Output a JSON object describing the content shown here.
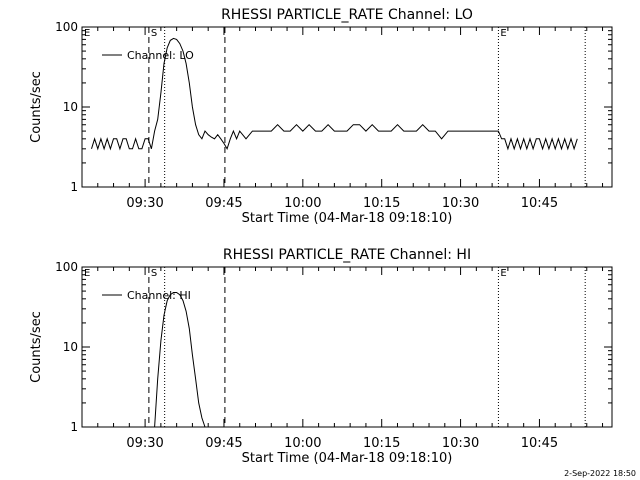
{
  "footer": {
    "timestamp": "2-Sep-2022 18:50"
  },
  "chart_data": [
    {
      "type": "line",
      "title": "RHESSI PARTICLE_RATE Channel: LO",
      "xlabel": "Start Time (04-Mar-18 09:18:10)",
      "ylabel": "Counts/sec",
      "xlim": [
        9.3,
        10.98
      ],
      "ylim": [
        1,
        100
      ],
      "yscale": "log",
      "x_ticks": [
        9.5,
        9.75,
        10.0,
        10.25,
        10.5,
        10.75
      ],
      "x_tick_labels": [
        "09:30",
        "09:45",
        "10:00",
        "10:15",
        "10:30",
        "10:45"
      ],
      "y_ticks": [
        1,
        10,
        100
      ],
      "y_tick_labels": [
        "1",
        "10",
        "100"
      ],
      "legend": {
        "position": "top-left",
        "entries": [
          "Channel: LO"
        ]
      },
      "markers": [
        {
          "x": 9.3,
          "style": "none",
          "label": "E"
        },
        {
          "x": 9.512,
          "style": "dashed",
          "label": "S"
        },
        {
          "x": 9.562,
          "style": "dotted",
          "label": ""
        },
        {
          "x": 9.753,
          "style": "dashed",
          "label": ""
        },
        {
          "x": 10.62,
          "style": "dotted",
          "label": "E"
        },
        {
          "x": 10.895,
          "style": "dotted",
          "label": ""
        }
      ],
      "series": [
        {
          "name": "Channel: LO",
          "x": [
            9.33,
            9.34,
            9.35,
            9.36,
            9.37,
            9.38,
            9.39,
            9.4,
            9.41,
            9.42,
            9.43,
            9.44,
            9.45,
            9.46,
            9.47,
            9.48,
            9.49,
            9.5,
            9.51,
            9.52,
            9.53,
            9.54,
            9.55,
            9.56,
            9.57,
            9.58,
            9.59,
            9.6,
            9.61,
            9.62,
            9.63,
            9.64,
            9.65,
            9.66,
            9.67,
            9.68,
            9.69,
            9.7,
            9.71,
            9.72,
            9.73,
            9.74,
            9.75,
            9.76,
            9.77,
            9.78,
            9.79,
            9.8,
            9.82,
            9.84,
            9.86,
            9.88,
            9.9,
            9.92,
            9.94,
            9.96,
            9.98,
            10.0,
            10.02,
            10.04,
            10.06,
            10.08,
            10.1,
            10.12,
            10.14,
            10.16,
            10.18,
            10.2,
            10.22,
            10.24,
            10.26,
            10.28,
            10.3,
            10.32,
            10.34,
            10.36,
            10.38,
            10.4,
            10.42,
            10.44,
            10.46,
            10.48,
            10.5,
            10.52,
            10.54,
            10.56,
            10.58,
            10.6,
            10.62,
            10.63,
            10.64,
            10.65,
            10.66,
            10.67,
            10.68,
            10.69,
            10.7,
            10.71,
            10.72,
            10.73,
            10.74,
            10.75,
            10.76,
            10.77,
            10.78,
            10.79,
            10.8,
            10.81,
            10.82,
            10.83,
            10.84,
            10.85,
            10.86,
            10.87
          ],
          "values": [
            3,
            4,
            3,
            4,
            3,
            4,
            3,
            4,
            4,
            3,
            4,
            4,
            3,
            3,
            4,
            3,
            3,
            4,
            4,
            3,
            5,
            7,
            15,
            35,
            55,
            68,
            72,
            70,
            62,
            50,
            35,
            20,
            10,
            6,
            4.5,
            4,
            5,
            4.5,
            4.2,
            4,
            4.5,
            4,
            3.5,
            3,
            4,
            5,
            4,
            5,
            4,
            5,
            5,
            5,
            5,
            6,
            5,
            5,
            6,
            5,
            6,
            5,
            5,
            6,
            5,
            5,
            5,
            6,
            6,
            5,
            6,
            5,
            5,
            5,
            6,
            5,
            5,
            5,
            6,
            5,
            5,
            4,
            5,
            5,
            5,
            5,
            5,
            5,
            5,
            5,
            5,
            4,
            4,
            3,
            4,
            3,
            4,
            3,
            4,
            3,
            4,
            3,
            4,
            4,
            3,
            4,
            3,
            4,
            3,
            4,
            3,
            4,
            3,
            4,
            3,
            4
          ]
        }
      ]
    },
    {
      "type": "line",
      "title": "RHESSI PARTICLE_RATE Channel: HI",
      "xlabel": "Start Time (04-Mar-18 09:18:10)",
      "ylabel": "Counts/sec",
      "xlim": [
        9.3,
        10.98
      ],
      "ylim": [
        1,
        100
      ],
      "yscale": "log",
      "x_ticks": [
        9.5,
        9.75,
        10.0,
        10.25,
        10.5,
        10.75
      ],
      "x_tick_labels": [
        "09:30",
        "09:45",
        "10:00",
        "10:15",
        "10:30",
        "10:45"
      ],
      "y_ticks": [
        1,
        10,
        100
      ],
      "y_tick_labels": [
        "1",
        "10",
        "100"
      ],
      "legend": {
        "position": "top-left",
        "entries": [
          "Channel: HI"
        ]
      },
      "markers": [
        {
          "x": 9.3,
          "style": "none",
          "label": "E"
        },
        {
          "x": 9.512,
          "style": "dashed",
          "label": "S"
        },
        {
          "x": 9.562,
          "style": "dotted",
          "label": ""
        },
        {
          "x": 9.753,
          "style": "dashed",
          "label": ""
        },
        {
          "x": 10.62,
          "style": "dotted",
          "label": "E"
        },
        {
          "x": 10.895,
          "style": "dotted",
          "label": ""
        }
      ],
      "series": [
        {
          "name": "Channel: HI",
          "x": [
            9.53,
            9.54,
            9.55,
            9.56,
            9.57,
            9.58,
            9.59,
            9.6,
            9.61,
            9.62,
            9.63,
            9.64,
            9.65,
            9.66,
            9.67,
            9.68,
            9.69
          ],
          "values": [
            1,
            4,
            12,
            25,
            38,
            45,
            48,
            48,
            45,
            38,
            28,
            17,
            8,
            4,
            2,
            1.3,
            1
          ]
        }
      ]
    }
  ]
}
